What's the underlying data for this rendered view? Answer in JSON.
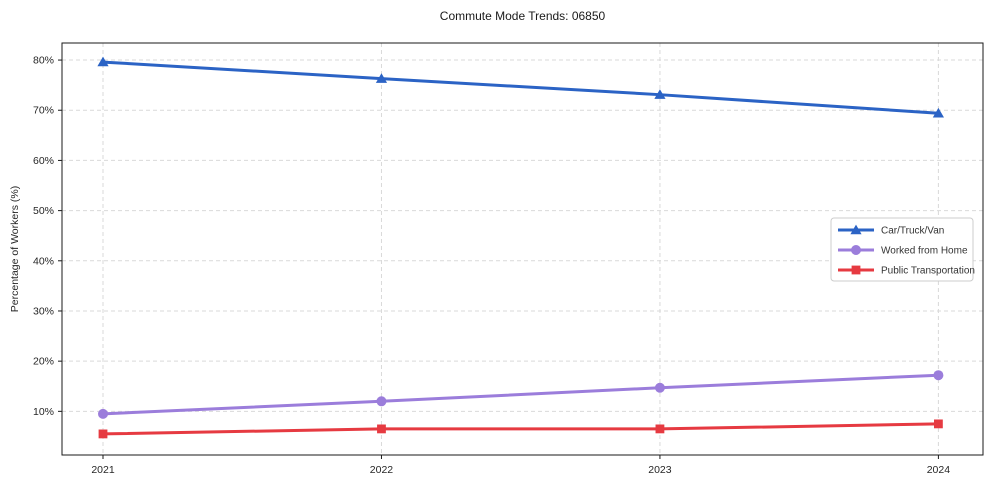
{
  "chart_data": {
    "type": "line",
    "title": "Commute Mode Trends: 06850",
    "xlabel": "",
    "ylabel": "Percentage of Workers (%)",
    "x_categories": [
      "2021",
      "2022",
      "2023",
      "2024"
    ],
    "y_ticks": [
      {
        "value": 10,
        "label": "10%"
      },
      {
        "value": 20,
        "label": "20%"
      },
      {
        "value": 30,
        "label": "30%"
      },
      {
        "value": 40,
        "label": "40%"
      },
      {
        "value": 50,
        "label": "50%"
      },
      {
        "value": 60,
        "label": "60%"
      },
      {
        "value": 70,
        "label": "70%"
      },
      {
        "value": 80,
        "label": "80%"
      }
    ],
    "ylim": [
      1.3,
      83.4
    ],
    "grid": {
      "visible": true,
      "style": "dashed",
      "color": "#d9d9d9"
    },
    "axis": {
      "spine_color": "#1a1a1a",
      "tick_label_color": "#262626"
    },
    "legend": {
      "position": "right-center",
      "border_color": "#cccccc",
      "background": "#ffffff"
    },
    "series": [
      {
        "name": "Car/Truck/Van",
        "color": "#2b63c5",
        "marker": "triangle-up",
        "values": [
          79.6,
          76.3,
          73.1,
          69.4
        ]
      },
      {
        "name": "Worked from Home",
        "color": "#9b7ddb",
        "marker": "circle",
        "values": [
          9.5,
          12.0,
          14.7,
          17.2
        ]
      },
      {
        "name": "Public Transportation",
        "color": "#e63a41",
        "marker": "square",
        "values": [
          5.5,
          6.5,
          6.5,
          7.5
        ]
      }
    ]
  }
}
